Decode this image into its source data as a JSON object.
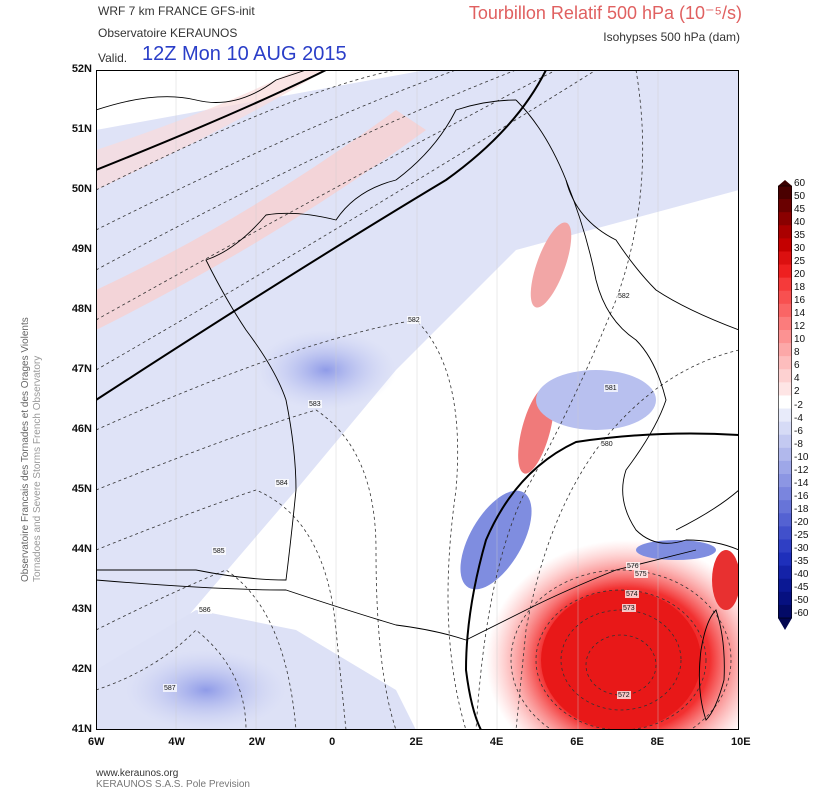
{
  "header": {
    "model": "WRF 7 km FRANCE  GFS-init",
    "org": "Observatoire KERAUNOS",
    "valid_label": "Valid.",
    "valid_date": "12Z Mon 10 AUG 2015",
    "title": "Tourbillon Relatif 500 hPa (10⁻⁵/s)",
    "subtitle": "Isohypses 500 hPa (dam)"
  },
  "side_text": {
    "line1": "Observatoire Francais des Tornades et des Orages Violents",
    "line2": "Tornadoes and Severe Storms French Observatory"
  },
  "axes": {
    "lat_labels": [
      "52N",
      "51N",
      "50N",
      "49N",
      "48N",
      "47N",
      "46N",
      "45N",
      "44N",
      "43N",
      "42N",
      "41N"
    ],
    "lon_labels": [
      "6W",
      "4W",
      "2W",
      "0",
      "2E",
      "4E",
      "6E",
      "8E",
      "10E"
    ]
  },
  "isohypses": [
    {
      "label": "582"
    },
    {
      "label": "583"
    },
    {
      "label": "584"
    },
    {
      "label": "585"
    },
    {
      "label": "586"
    },
    {
      "label": "587"
    },
    {
      "label": "582"
    },
    {
      "label": "581"
    },
    {
      "label": "580"
    },
    {
      "label": "576"
    },
    {
      "label": "575"
    },
    {
      "label": "574"
    },
    {
      "label": "573"
    },
    {
      "label": "572"
    }
  ],
  "colorbar": {
    "labels": [
      "60",
      "50",
      "45",
      "40",
      "35",
      "30",
      "25",
      "20",
      "18",
      "16",
      "14",
      "12",
      "10",
      "8",
      "6",
      "4",
      "2",
      "-2",
      "-4",
      "-6",
      "-8",
      "-10",
      "-12",
      "-14",
      "-16",
      "-18",
      "-20",
      "-25",
      "-30",
      "-35",
      "-40",
      "-45",
      "-50",
      "-60"
    ]
  },
  "footer": {
    "site": "www.keraunos.org",
    "company": "KERAUNOS S.A.S. Pole Prevision"
  },
  "colors": {
    "positive_max": "#b00000",
    "negative_max": "#0a1a8a",
    "title": "#e06060",
    "date": "#2a3ec8"
  }
}
